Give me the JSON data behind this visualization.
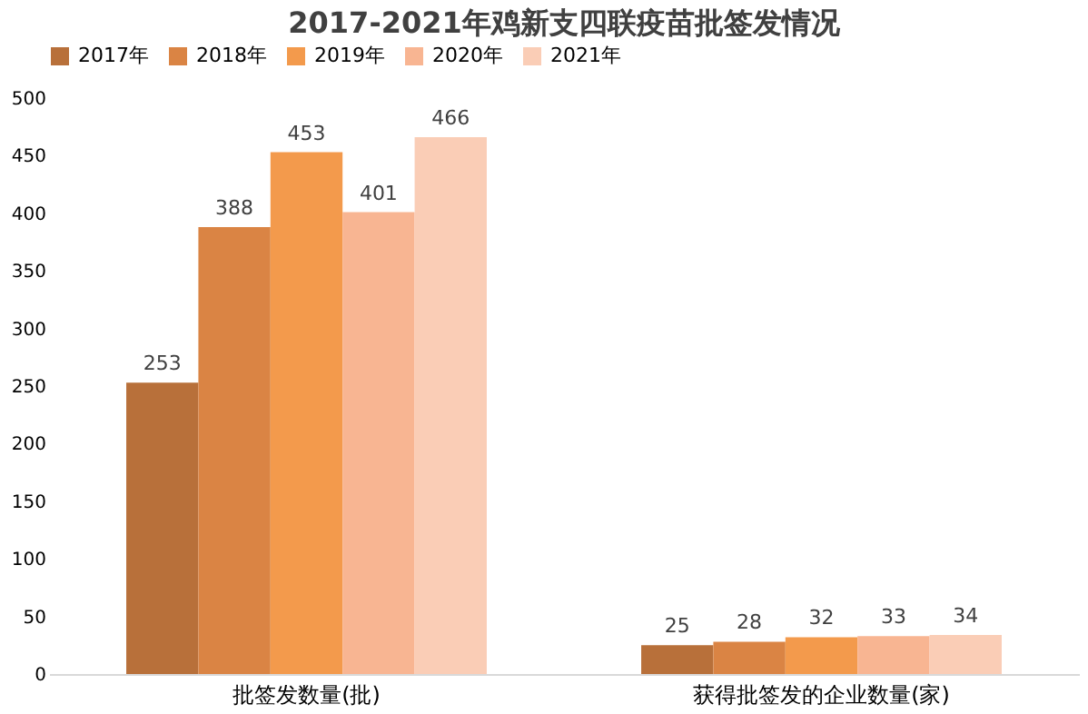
{
  "chart_data": {
    "type": "bar",
    "title": "2017-2021年鸡新支四联疫苗批签发情况",
    "categories": [
      "批签发数量(批)",
      "获得批签发的企业数量(家)"
    ],
    "series": [
      {
        "name": "2017年",
        "color": "#b8703a",
        "values": [
          253,
          25
        ]
      },
      {
        "name": "2018年",
        "color": "#da8444",
        "values": [
          388,
          28
        ]
      },
      {
        "name": "2019年",
        "color": "#f39a4c",
        "values": [
          453,
          32
        ]
      },
      {
        "name": "2020年",
        "color": "#f8b592",
        "values": [
          401,
          33
        ]
      },
      {
        "name": "2021年",
        "color": "#facdb6",
        "values": [
          466,
          34
        ]
      }
    ],
    "ylim": [
      0,
      500
    ],
    "yticks": [
      0,
      50,
      100,
      150,
      200,
      250,
      300,
      350,
      400,
      450,
      500
    ],
    "grid": false,
    "legend": "top",
    "data_labels": true
  }
}
